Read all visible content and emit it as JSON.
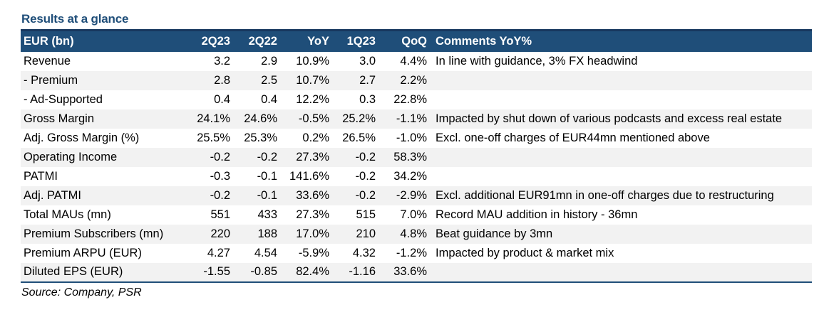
{
  "title": "Results at a glance",
  "headers": [
    "EUR (bn)",
    "2Q23",
    "2Q22",
    "YoY",
    "1Q23",
    "QoQ",
    "Comments YoY%"
  ],
  "rows": [
    {
      "label": "Revenue",
      "v": [
        "3.2",
        "2.9",
        "10.9%",
        "3.0",
        "4.4%"
      ],
      "comment": "In line with guidance, 3% FX headwind"
    },
    {
      "label": " - Premium",
      "v": [
        "2.8",
        "2.5",
        "10.7%",
        "2.7",
        "2.2%"
      ],
      "comment": ""
    },
    {
      "label": " - Ad-Supported",
      "v": [
        "0.4",
        "0.4",
        "12.2%",
        "0.3",
        "22.8%"
      ],
      "comment": ""
    },
    {
      "label": "Gross Margin",
      "v": [
        "24.1%",
        "24.6%",
        "-0.5%",
        "25.2%",
        "-1.1%"
      ],
      "comment": "Impacted by shut down of various podcasts and excess real estate"
    },
    {
      "label": "Adj. Gross Margin (%)",
      "v": [
        "25.5%",
        "25.3%",
        "0.2%",
        "26.5%",
        "-1.0%"
      ],
      "comment": "Excl. one-off charges of EUR44mn mentioned above"
    },
    {
      "label": "Operating Income",
      "v": [
        "-0.2",
        "-0.2",
        "27.3%",
        "-0.2",
        "58.3%"
      ],
      "comment": ""
    },
    {
      "label": "PATMI",
      "v": [
        "-0.3",
        "-0.1",
        "141.6%",
        "-0.2",
        "34.2%"
      ],
      "comment": ""
    },
    {
      "label": "Adj. PATMI",
      "v": [
        "-0.2",
        "-0.1",
        "33.6%",
        "-0.2",
        "-2.9%"
      ],
      "comment": "Excl. additional EUR91mn in one-off charges due to restructuring"
    },
    {
      "label": "Total MAUs (mn)",
      "v": [
        "551",
        "433",
        "27.3%",
        "515",
        "7.0%"
      ],
      "comment": "Record MAU addition in history - 36mn"
    },
    {
      "label": "Premium Subscribers (mn)",
      "v": [
        "220",
        "188",
        "17.0%",
        "210",
        "4.8%"
      ],
      "comment": "Beat guidance by 3mn"
    },
    {
      "label": "Premium ARPU (EUR)",
      "v": [
        "4.27",
        "4.54",
        "-5.9%",
        "4.32",
        "-1.2%"
      ],
      "comment": "Impacted by product & market mix"
    },
    {
      "label": "Diluted EPS (EUR)",
      "v": [
        "-1.55",
        "-0.85",
        "82.4%",
        "-1.16",
        "33.6%"
      ],
      "comment": ""
    }
  ],
  "source": "Source: Company, PSR"
}
